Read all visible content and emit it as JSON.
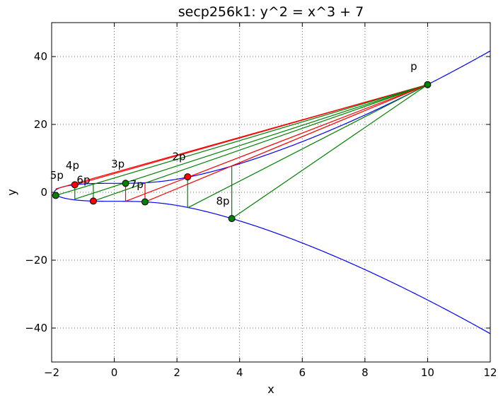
{
  "chart_data": {
    "type": "line",
    "title": "secp256k1: y^2 = x^3 + 7",
    "xlabel": "x",
    "ylabel": "y",
    "xlim": [
      -2,
      12
    ],
    "ylim": [
      -50,
      50
    ],
    "xticks": [
      -2,
      0,
      2,
      4,
      6,
      8,
      10,
      12
    ],
    "xtick_labels": [
      "−2",
      "0",
      "2",
      "4",
      "6",
      "8",
      "10",
      "12"
    ],
    "yticks": [
      -40,
      -20,
      0,
      20,
      40
    ],
    "ytick_labels": [
      "−40",
      "−20",
      "0",
      "20",
      "40"
    ],
    "grid": true,
    "curve": {
      "equation": "y^2 = x^3 + 7",
      "color": "#0000ff",
      "x_start": -1.913,
      "x_end": 12
    },
    "points": [
      {
        "label": "p",
        "x": 10.0,
        "y": 31.73,
        "color": "#008000"
      },
      {
        "label": "2p",
        "x": 2.34,
        "y": 4.57,
        "color": "#ff0000"
      },
      {
        "label": "3p",
        "x": 0.36,
        "y": 2.65,
        "color": "#008000"
      },
      {
        "label": "4p",
        "x": -1.87,
        "y": -0.92,
        "color": "#008000"
      },
      {
        "label": "5p",
        "x": -1.26,
        "y": 2.22,
        "color": "#ff0000"
      },
      {
        "label": "6p",
        "x": -0.67,
        "y": -2.59,
        "color": "#ff0000"
      },
      {
        "label": "7p",
        "x": 0.98,
        "y": -2.82,
        "color": "#008000"
      },
      {
        "label": "8p",
        "x": 3.75,
        "y": -7.73,
        "color": "#008000"
      }
    ],
    "label_positions_data": [
      {
        "label": "p",
        "x": 9.45,
        "y": 36.0
      },
      {
        "label": "2p",
        "x": 1.85,
        "y": 9.5
      },
      {
        "label": "3p",
        "x": -0.1,
        "y": 7.3
      },
      {
        "label": "4p",
        "x": -1.55,
        "y": 6.9
      },
      {
        "label": "5p",
        "x": -2.05,
        "y": 4.0
      },
      {
        "label": "6p",
        "x": -1.2,
        "y": 2.6
      },
      {
        "label": "7p",
        "x": 0.5,
        "y": 1.2
      },
      {
        "label": "8p",
        "x": 3.25,
        "y": -3.6
      }
    ],
    "secant_lines": [
      {
        "color": "#ff0000",
        "from": [
          -1.87,
          1.0
        ],
        "to": [
          10.0,
          31.73
        ]
      },
      {
        "color": "#ff0000",
        "from": [
          -1.26,
          2.22
        ],
        "to": [
          10.0,
          31.73
        ]
      },
      {
        "color": "#008000",
        "from": [
          -1.87,
          -0.92
        ],
        "to": [
          10.0,
          31.73
        ]
      },
      {
        "color": "#008000",
        "from": [
          -1.26,
          -2.0
        ],
        "to": [
          10.0,
          31.73
        ]
      },
      {
        "color": "#008000",
        "from": [
          -0.67,
          -2.59
        ],
        "to": [
          10.0,
          31.73
        ]
      },
      {
        "color": "#ff0000",
        "from": [
          0.36,
          -2.65
        ],
        "to": [
          10.0,
          31.73
        ]
      },
      {
        "color": "#ff0000",
        "from": [
          0.98,
          -2.82
        ],
        "to": [
          10.0,
          31.73
        ]
      },
      {
        "color": "#008000",
        "from": [
          2.34,
          -4.57
        ],
        "to": [
          10.0,
          31.73
        ]
      },
      {
        "color": "#008000",
        "from": [
          3.75,
          -7.73
        ],
        "to": [
          10.0,
          31.73
        ]
      }
    ],
    "vertical_lines": [
      {
        "color": "#008000",
        "x": -1.26,
        "y1": -2.22,
        "y2": 2.22
      },
      {
        "color": "#008000",
        "x": -0.67,
        "y1": -2.59,
        "y2": 2.59
      },
      {
        "color": "#ff0000",
        "x": 0.36,
        "y1": -2.65,
        "y2": 2.65
      },
      {
        "color": "#ff0000",
        "x": 0.98,
        "y1": -2.82,
        "y2": 2.82
      },
      {
        "color": "#008000",
        "x": 2.34,
        "y1": -4.57,
        "y2": 4.57
      },
      {
        "color": "#008000",
        "x": 3.75,
        "y1": -7.73,
        "y2": 7.73
      }
    ]
  }
}
